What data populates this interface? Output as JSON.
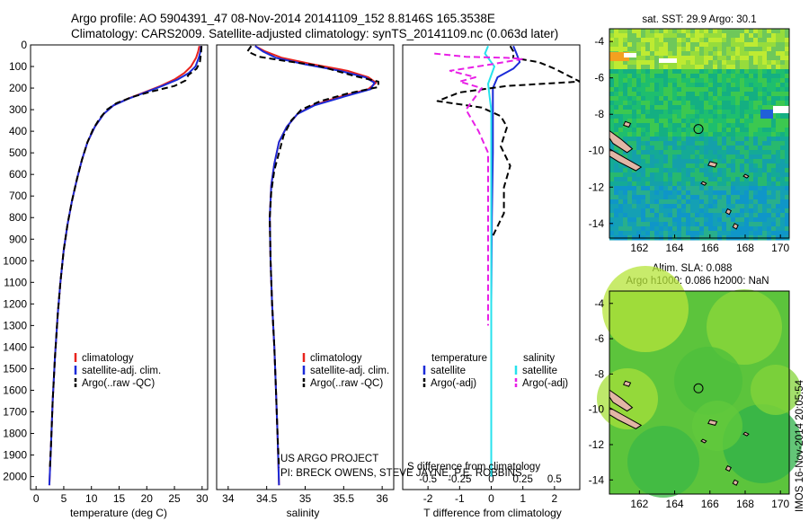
{
  "header": {
    "line1": "Argo profile: AO 5904391_47 08-Nov-2014 20141109_152 8.8146S 165.3538E",
    "line2": "Climatology: CARS2009. Satellite-adjusted climatology: synTS_20141109.nc (0.063d later)"
  },
  "colors": {
    "climatology": "#e8231d",
    "satellite": "#1b2bd8",
    "argo": "#000000",
    "s_satellite": "#27e2ec",
    "s_argo": "#e81fe6",
    "land": "#e2b6a6"
  },
  "chart_data": [
    {
      "id": "temperature-profile",
      "type": "line",
      "xlabel": "temperature (deg C)",
      "xlim": [
        -1,
        31
      ],
      "xticks": [
        0,
        5,
        10,
        15,
        20,
        25,
        30
      ],
      "ylim": [
        2060,
        0
      ],
      "yticks": [
        0,
        100,
        200,
        300,
        400,
        500,
        600,
        700,
        800,
        900,
        1000,
        1100,
        1200,
        1300,
        1400,
        1500,
        1600,
        1700,
        1800,
        1900,
        2000
      ],
      "legend": [
        "climatology",
        "satellite-adj. clim.",
        "Argo(..raw -QC)"
      ],
      "legend_position": "lower-center",
      "series": [
        {
          "name": "climatology",
          "style": "solid",
          "color_key": "climatology",
          "points": [
            [
              29.5,
              5
            ],
            [
              29.3,
              30
            ],
            [
              28.9,
              60
            ],
            [
              28.0,
              100
            ],
            [
              26.8,
              130
            ],
            [
              25.0,
              160
            ],
            [
              22.5,
              190
            ],
            [
              19.5,
              220
            ],
            [
              16.5,
              250
            ],
            [
              14.0,
              280
            ],
            [
              12.2,
              320
            ],
            [
              10.6,
              380
            ],
            [
              9.3,
              450
            ],
            [
              8.3,
              530
            ],
            [
              7.4,
              620
            ],
            [
              6.5,
              720
            ],
            [
              5.7,
              830
            ],
            [
              5.0,
              950
            ],
            [
              4.4,
              1100
            ],
            [
              3.9,
              1250
            ],
            [
              3.4,
              1450
            ],
            [
              3.0,
              1650
            ],
            [
              2.7,
              1850
            ],
            [
              2.4,
              2040
            ]
          ]
        },
        {
          "name": "satellite-adj. clim.",
          "style": "solid",
          "color_key": "satellite",
          "points": [
            [
              29.8,
              5
            ],
            [
              29.7,
              30
            ],
            [
              29.4,
              60
            ],
            [
              28.8,
              100
            ],
            [
              27.6,
              130
            ],
            [
              25.6,
              160
            ],
            [
              22.8,
              190
            ],
            [
              19.7,
              220
            ],
            [
              16.6,
              250
            ],
            [
              14.0,
              280
            ],
            [
              12.2,
              320
            ],
            [
              10.6,
              380
            ],
            [
              9.3,
              450
            ],
            [
              8.3,
              530
            ],
            [
              7.4,
              620
            ],
            [
              6.5,
              720
            ],
            [
              5.7,
              830
            ],
            [
              5.0,
              950
            ],
            [
              4.4,
              1100
            ],
            [
              3.9,
              1250
            ],
            [
              3.4,
              1450
            ],
            [
              3.0,
              1650
            ],
            [
              2.7,
              1850
            ],
            [
              2.4,
              2040
            ]
          ]
        },
        {
          "name": "Argo(..raw -QC)",
          "style": "dashed",
          "color_key": "argo",
          "points": [
            [
              29.9,
              5
            ],
            [
              29.8,
              40
            ],
            [
              29.6,
              80
            ],
            [
              29.0,
              110
            ],
            [
              27.5,
              140
            ],
            [
              27.0,
              165
            ],
            [
              25.0,
              190
            ],
            [
              21.0,
              215
            ],
            [
              17.5,
              240
            ],
            [
              14.5,
              270
            ],
            [
              12.8,
              300
            ],
            [
              11.5,
              340
            ],
            [
              10.3,
              390
            ],
            [
              9.3,
              450
            ],
            [
              8.3,
              530
            ],
            [
              7.4,
              620
            ],
            [
              6.5,
              720
            ],
            [
              5.7,
              830
            ],
            [
              5.0,
              950
            ],
            [
              4.4,
              1100
            ],
            [
              3.9,
              1250
            ],
            [
              3.4,
              1450
            ],
            [
              3.0,
              1650
            ],
            [
              2.7,
              1850
            ],
            [
              2.5,
              1960
            ]
          ]
        }
      ]
    },
    {
      "id": "salinity-profile",
      "type": "line",
      "xlabel": "salinity",
      "xlim": [
        33.85,
        36.15
      ],
      "xticks": [
        "34",
        "34.5",
        "35",
        "35.5",
        "36"
      ],
      "ylim": [
        2060,
        0
      ],
      "legend": [
        "climatology",
        "satellite-adj. clim.",
        "Argo(..raw -QC)"
      ],
      "legend_position": "lower-center",
      "series": [
        {
          "name": "climatology",
          "style": "solid",
          "color_key": "climatology",
          "points": [
            [
              34.35,
              5
            ],
            [
              34.48,
              30
            ],
            [
              34.7,
              60
            ],
            [
              35.1,
              90
            ],
            [
              35.55,
              120
            ],
            [
              35.82,
              150
            ],
            [
              35.92,
              175
            ],
            [
              35.82,
              205
            ],
            [
              35.45,
              240
            ],
            [
              35.1,
              280
            ],
            [
              34.9,
              320
            ],
            [
              34.76,
              380
            ],
            [
              34.66,
              450
            ],
            [
              34.6,
              550
            ],
            [
              34.56,
              650
            ],
            [
              34.54,
              800
            ],
            [
              34.55,
              1000
            ],
            [
              34.57,
              1200
            ],
            [
              34.6,
              1400
            ],
            [
              34.62,
              1600
            ],
            [
              34.64,
              1800
            ],
            [
              34.66,
              2040
            ]
          ]
        },
        {
          "name": "satellite-adj. clim.",
          "style": "solid",
          "color_key": "satellite",
          "points": [
            [
              34.35,
              5
            ],
            [
              34.45,
              30
            ],
            [
              34.62,
              60
            ],
            [
              35.0,
              90
            ],
            [
              35.45,
              120
            ],
            [
              35.78,
              150
            ],
            [
              35.9,
              175
            ],
            [
              35.85,
              205
            ],
            [
              35.5,
              240
            ],
            [
              35.12,
              280
            ],
            [
              34.9,
              320
            ],
            [
              34.76,
              380
            ],
            [
              34.66,
              450
            ],
            [
              34.6,
              550
            ],
            [
              34.56,
              650
            ],
            [
              34.54,
              800
            ],
            [
              34.55,
              1000
            ],
            [
              34.57,
              1200
            ],
            [
              34.6,
              1400
            ],
            [
              34.62,
              1600
            ],
            [
              34.64,
              1800
            ],
            [
              34.66,
              2040
            ]
          ]
        },
        {
          "name": "Argo(..raw -QC)",
          "style": "dashed",
          "color_key": "argo",
          "points": [
            [
              34.3,
              5
            ],
            [
              34.25,
              30
            ],
            [
              34.4,
              55
            ],
            [
              34.75,
              75
            ],
            [
              35.15,
              95
            ],
            [
              35.4,
              120
            ],
            [
              35.65,
              145
            ],
            [
              35.95,
              170
            ],
            [
              35.95,
              195
            ],
            [
              35.55,
              225
            ],
            [
              35.2,
              260
            ],
            [
              34.95,
              300
            ],
            [
              34.82,
              350
            ],
            [
              34.72,
              420
            ],
            [
              34.66,
              500
            ],
            [
              34.6,
              580
            ],
            [
              34.56,
              680
            ],
            [
              34.54,
              800
            ],
            [
              34.55,
              1000
            ],
            [
              34.57,
              1200
            ],
            [
              34.6,
              1400
            ],
            [
              34.62,
              1600
            ],
            [
              34.64,
              1800
            ],
            [
              34.66,
              1960
            ]
          ]
        }
      ],
      "annotation": {
        "line1": "US ARGO PROJECT",
        "line2": "PI: BRECK OWENS, STEVE JAYNE, P.E. ROBBINS"
      }
    },
    {
      "id": "difference-profile",
      "type": "line",
      "xlabel": "T difference from climatology",
      "top_xlabel": "S difference from climatology",
      "xlim": [
        -2.8,
        2.8
      ],
      "xticks": [
        "-2",
        "-1",
        "0",
        "1",
        "2"
      ],
      "top_xticks": [
        "-0.5",
        "-0.25",
        "0",
        "0.25",
        "0.5"
      ],
      "ylim": [
        2060,
        0
      ],
      "legend": [
        {
          "group": "temperature",
          "items": [
            "satellite",
            "Argo(-adj)"
          ]
        },
        {
          "group": "salinity",
          "items": [
            "satellite",
            "Argo(-adj)"
          ]
        }
      ],
      "series": [
        {
          "name": "temperature satellite",
          "style": "solid",
          "color_key": "satellite",
          "points": [
            [
              0.7,
              5
            ],
            [
              0.8,
              40
            ],
            [
              0.9,
              80
            ],
            [
              0.7,
              110
            ],
            [
              0.2,
              150
            ],
            [
              0.05,
              200
            ],
            [
              0.05,
              300
            ],
            [
              0.05,
              500
            ],
            [
              0.02,
              800
            ],
            [
              0.0,
              1200
            ],
            [
              0.0,
              1600
            ],
            [
              0.0,
              2000
            ]
          ]
        },
        {
          "name": "temperature Argo(-adj)",
          "style": "dashed",
          "color_key": "argo",
          "points": [
            [
              0.6,
              5
            ],
            [
              0.7,
              30
            ],
            [
              0.7,
              60
            ],
            [
              1.5,
              80
            ],
            [
              2.0,
              110
            ],
            [
              2.8,
              170
            ],
            [
              0.5,
              190
            ],
            [
              -1.0,
              220
            ],
            [
              -1.7,
              260
            ],
            [
              -0.3,
              290
            ],
            [
              0.3,
              330
            ],
            [
              0.5,
              380
            ],
            [
              0.3,
              470
            ],
            [
              0.6,
              560
            ],
            [
              0.4,
              660
            ],
            [
              0.4,
              780
            ],
            [
              0.0,
              900
            ],
            [
              0.0,
              1100
            ],
            [
              0.0,
              1400
            ],
            [
              0.0,
              1700
            ],
            [
              0.0,
              1960
            ]
          ]
        },
        {
          "name": "salinity satellite",
          "style": "solid",
          "color_key": "s_satellite",
          "points": [
            [
              -0.1,
              5
            ],
            [
              -0.2,
              40
            ],
            [
              -0.05,
              70
            ],
            [
              0.1,
              100
            ],
            [
              0.0,
              140
            ],
            [
              -0.1,
              180
            ],
            [
              -0.05,
              240
            ],
            [
              0.0,
              300
            ],
            [
              0.0,
              500
            ],
            [
              0.0,
              800
            ],
            [
              0.0,
              1200
            ],
            [
              0.0,
              1600
            ],
            [
              0.0,
              2000
            ]
          ]
        },
        {
          "name": "salinity Argo(-adj)",
          "style": "dashed",
          "color_key": "s_argo",
          "points": [
            [
              -1.8,
              40
            ],
            [
              -0.8,
              55
            ],
            [
              0.5,
              60
            ],
            [
              1.0,
              65
            ],
            [
              0.0,
              90
            ],
            [
              -1.3,
              120
            ],
            [
              -0.5,
              150
            ],
            [
              -1.0,
              170
            ],
            [
              -0.3,
              200
            ],
            [
              -0.8,
              300
            ],
            [
              -0.4,
              400
            ],
            [
              -0.1,
              500
            ],
            [
              -0.1,
              600
            ],
            [
              -0.1,
              800
            ],
            [
              -0.1,
              1000
            ],
            [
              -0.1,
              1200
            ],
            [
              -0.1,
              1300
            ]
          ]
        }
      ]
    }
  ],
  "maps": [
    {
      "id": "sst-map",
      "title": "sat. SST: 29.9  Argo: 30.1",
      "xticks": [
        "162",
        "164",
        "166",
        "168",
        "170"
      ],
      "yticks": [
        "-4",
        "-6",
        "-8",
        "-10",
        "-12",
        "-14"
      ],
      "xlim": [
        160.3,
        170.5
      ],
      "ylim": [
        -14.8,
        -3.3
      ],
      "float_position": {
        "lon": 165.35,
        "lat": -8.81
      }
    },
    {
      "id": "sla-map",
      "title_line1": "Altim. SLA: 0.088",
      "title_line2": "Argo h1000: 0.086 h2000: NaN",
      "xticks": [
        "162",
        "164",
        "166",
        "168",
        "170"
      ],
      "yticks": [
        "-4",
        "-6",
        "-8",
        "-10",
        "-12",
        "-14"
      ],
      "xlim": [
        160.3,
        170.5
      ],
      "ylim": [
        -14.8,
        -3.3
      ],
      "float_position": {
        "lon": 165.35,
        "lat": -8.81
      }
    }
  ],
  "footer": {
    "stamp": "IMOS 16-Nov-2014 20:05:54"
  }
}
